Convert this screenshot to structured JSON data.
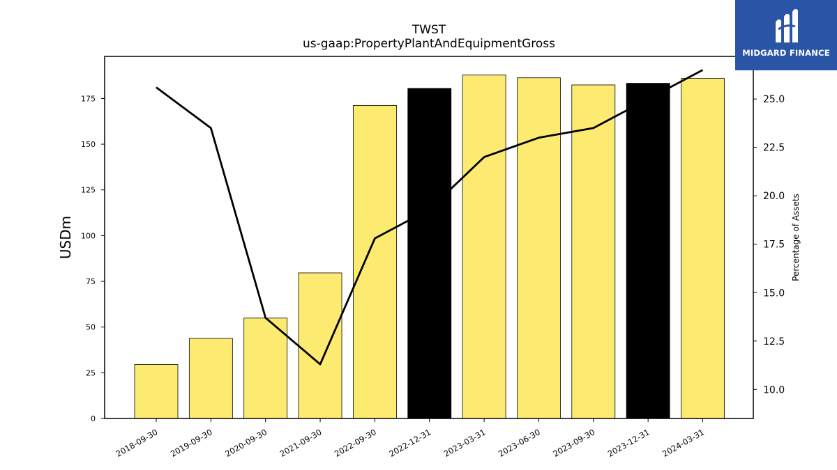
{
  "brand": {
    "name": "MIDGARD FINANCE",
    "background": "#2a55a6"
  },
  "chart_data": {
    "type": "bar",
    "title": "TWST",
    "subtitle": "us-gaap:PropertyPlantAndEquipmentGross",
    "ylabel": "USDm",
    "y2label": "Percentage of Assets",
    "categories": [
      "2018-09-30",
      "2019-09-30",
      "2020-09-30",
      "2021-09-30",
      "2022-09-30",
      "2022-12-31",
      "2023-03-31",
      "2023-06-30",
      "2023-09-30",
      "2023-12-31",
      "2024-03-31"
    ],
    "series": [
      {
        "kind": "bar",
        "axis": "left",
        "values": [
          29.5,
          43.8,
          54.9,
          79.6,
          171.2,
          180.5,
          187.8,
          186.3,
          182.4,
          183.3,
          186.0
        ],
        "bar_colors": [
          "#fdeb71",
          "#fdeb71",
          "#fdeb71",
          "#fdeb71",
          "#fdeb71",
          "#000000",
          "#fdeb71",
          "#fdeb71",
          "#fdeb71",
          "#000000",
          "#fdeb71"
        ]
      },
      {
        "kind": "line",
        "axis": "right",
        "color": "#000000",
        "values": [
          25.6,
          23.5,
          13.7,
          11.3,
          17.8,
          19.3,
          22.0,
          23.0,
          23.5,
          25.0,
          26.5
        ]
      }
    ],
    "ylim": [
      0,
      198
    ],
    "y2lim": [
      8.5,
      27.2
    ],
    "yticks": [
      0,
      25,
      50,
      75,
      100,
      125,
      150,
      175
    ],
    "y2ticks": [
      10.0,
      12.5,
      15.0,
      17.5,
      20.0,
      22.5,
      25.0
    ],
    "grid": false,
    "legend": "none"
  }
}
